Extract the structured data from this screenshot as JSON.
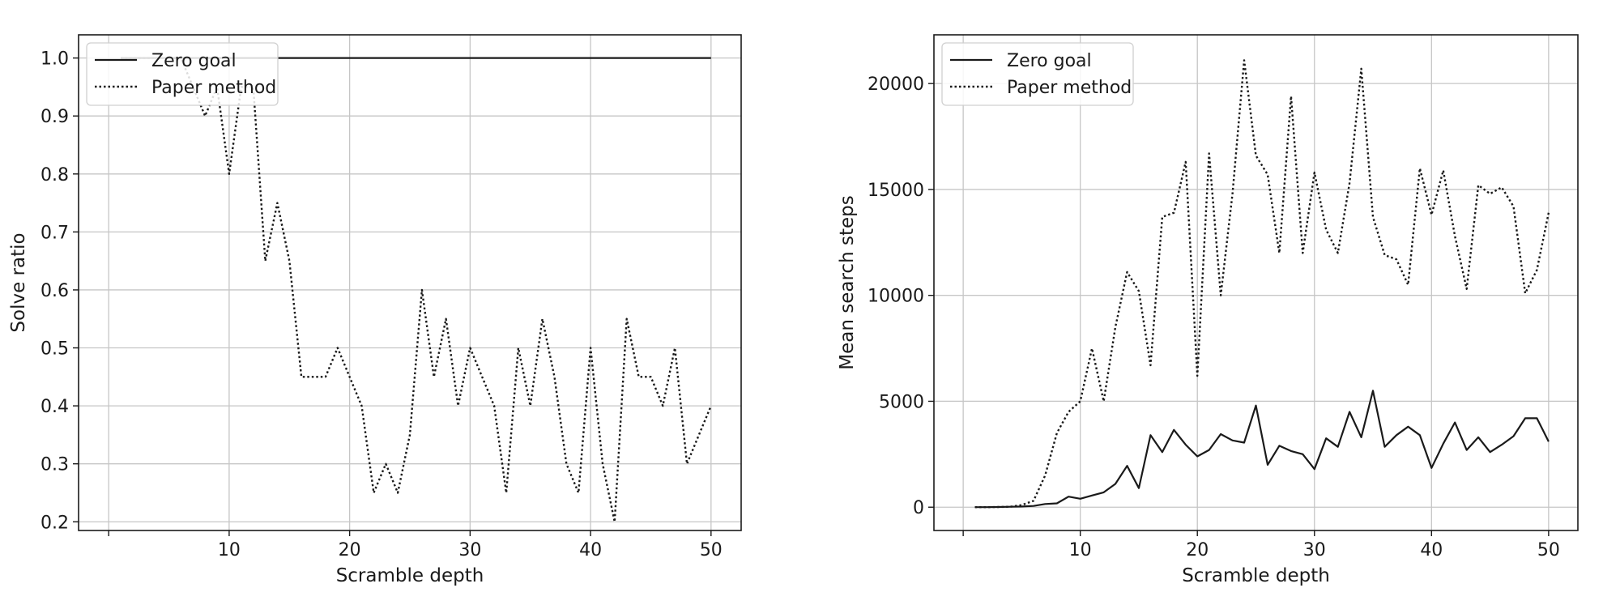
{
  "chart_data": [
    {
      "type": "line",
      "title": "",
      "xlabel": "Scramble depth",
      "ylabel": "Solve ratio",
      "xlim": [
        -2.5,
        52.5
      ],
      "ylim": [
        0.185,
        1.04
      ],
      "grid": true,
      "legend": "top-left",
      "xticks": [
        {
          "v": 0,
          "label": ""
        },
        {
          "v": 10,
          "label": "10"
        },
        {
          "v": 20,
          "label": "20"
        },
        {
          "v": 30,
          "label": "30"
        },
        {
          "v": 40,
          "label": "40"
        },
        {
          "v": 50,
          "label": "50"
        }
      ],
      "yticks": [
        {
          "v": 0.2,
          "label": "0.2"
        },
        {
          "v": 0.3,
          "label": "0.3"
        },
        {
          "v": 0.4,
          "label": "0.4"
        },
        {
          "v": 0.5,
          "label": "0.5"
        },
        {
          "v": 0.6,
          "label": "0.6"
        },
        {
          "v": 0.7,
          "label": "0.7"
        },
        {
          "v": 0.8,
          "label": "0.8"
        },
        {
          "v": 0.9,
          "label": "0.9"
        },
        {
          "v": 1.0,
          "label": "1.0"
        }
      ],
      "x": [
        1,
        2,
        3,
        4,
        5,
        6,
        7,
        8,
        9,
        10,
        11,
        12,
        13,
        14,
        15,
        16,
        17,
        18,
        19,
        20,
        21,
        22,
        23,
        24,
        25,
        26,
        27,
        28,
        29,
        30,
        31,
        32,
        33,
        34,
        35,
        36,
        37,
        38,
        39,
        40,
        41,
        42,
        43,
        44,
        45,
        46,
        47,
        48,
        49,
        50
      ],
      "series": [
        {
          "name": "Zero goal",
          "style": "solid",
          "values": [
            1,
            1,
            1,
            1,
            1,
            1,
            1,
            1,
            1,
            1,
            1,
            1,
            1,
            1,
            1,
            1,
            1,
            1,
            1,
            1,
            1,
            1,
            1,
            1,
            1,
            1,
            1,
            1,
            1,
            1,
            1,
            1,
            1,
            1,
            1,
            1,
            1,
            1,
            1,
            1,
            1,
            1,
            1,
            1,
            1,
            1,
            1,
            1,
            1,
            1
          ]
        },
        {
          "name": "Paper method",
          "style": "dotted",
          "values": [
            1,
            1,
            1,
            1,
            1,
            1,
            0.95,
            0.9,
            0.95,
            0.8,
            0.95,
            0.95,
            0.65,
            0.75,
            0.65,
            0.45,
            0.45,
            0.45,
            0.5,
            0.45,
            0.4,
            0.25,
            0.3,
            0.25,
            0.35,
            0.6,
            0.45,
            0.55,
            0.4,
            0.5,
            0.45,
            0.4,
            0.25,
            0.5,
            0.4,
            0.55,
            0.45,
            0.3,
            0.25,
            0.5,
            0.3,
            0.2,
            0.55,
            0.45,
            0.45,
            0.4,
            0.5,
            0.3,
            0.35,
            0.4
          ]
        }
      ]
    },
    {
      "type": "line",
      "title": "",
      "xlabel": "Scramble depth",
      "ylabel": "Mean search steps",
      "xlim": [
        -2.5,
        52.5
      ],
      "ylim": [
        -1100,
        22300
      ],
      "grid": true,
      "legend": "top-left",
      "xticks": [
        {
          "v": 0,
          "label": ""
        },
        {
          "v": 10,
          "label": "10"
        },
        {
          "v": 20,
          "label": "20"
        },
        {
          "v": 30,
          "label": "30"
        },
        {
          "v": 40,
          "label": "40"
        },
        {
          "v": 50,
          "label": "50"
        }
      ],
      "yticks": [
        {
          "v": 0,
          "label": "0"
        },
        {
          "v": 5000,
          "label": "5000"
        },
        {
          "v": 10000,
          "label": "10000"
        },
        {
          "v": 15000,
          "label": "15000"
        },
        {
          "v": 20000,
          "label": "20000"
        }
      ],
      "x": [
        1,
        2,
        3,
        4,
        5,
        6,
        7,
        8,
        9,
        10,
        11,
        12,
        13,
        14,
        15,
        16,
        17,
        18,
        19,
        20,
        21,
        22,
        23,
        24,
        25,
        26,
        27,
        28,
        29,
        30,
        31,
        32,
        33,
        34,
        35,
        36,
        37,
        38,
        39,
        40,
        41,
        42,
        43,
        44,
        45,
        46,
        47,
        48,
        49,
        50
      ],
      "series": [
        {
          "name": "Zero goal",
          "style": "solid",
          "values": [
            0,
            0,
            10,
            20,
            30,
            60,
            150,
            180,
            500,
            400,
            550,
            700,
            1100,
            1950,
            900,
            3400,
            2600,
            3650,
            2950,
            2400,
            2700,
            3450,
            3150,
            3050,
            4800,
            2000,
            2900,
            2650,
            2500,
            1800,
            3250,
            2850,
            4500,
            3300,
            5500,
            2850,
            3400,
            3800,
            3400,
            1850,
            3000,
            4000,
            2700,
            3300,
            2600,
            2950,
            3350,
            4200,
            4200,
            3100
          ]
        },
        {
          "name": "Paper method",
          "style": "dotted",
          "values": [
            0,
            0,
            10,
            20,
            100,
            300,
            1500,
            3500,
            4500,
            5000,
            7500,
            5000,
            8500,
            11100,
            10200,
            6700,
            13700,
            13900,
            16300,
            6200,
            16700,
            10000,
            14800,
            21100,
            16600,
            15700,
            12000,
            19400,
            12000,
            15800,
            13100,
            12000,
            15300,
            20700,
            13700,
            11900,
            11700,
            10500,
            16000,
            13800,
            15900,
            12800,
            10300,
            15200,
            14800,
            15100,
            14200,
            10100,
            11200,
            13900
          ]
        }
      ]
    }
  ]
}
